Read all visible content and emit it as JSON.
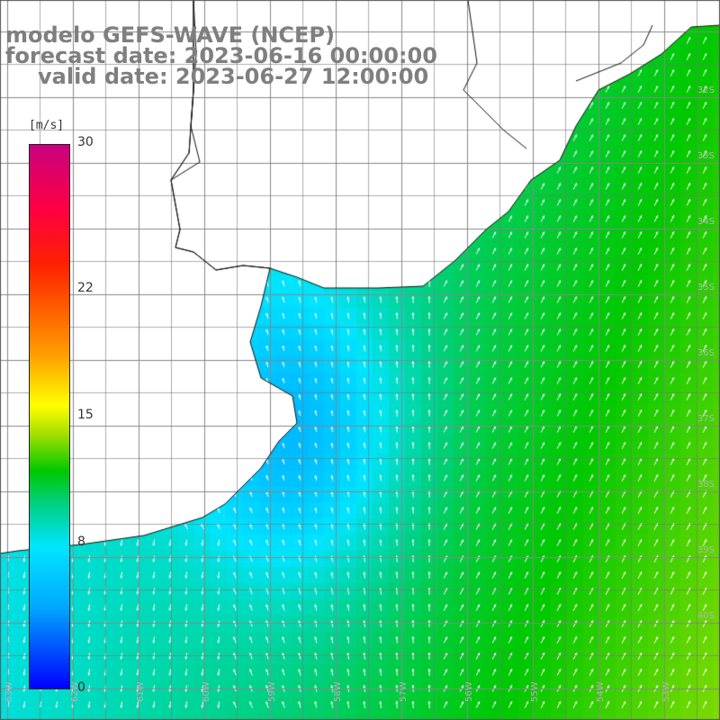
{
  "title": {
    "line1": "modelo GEFS-WAVE (NCEP)",
    "line2": "forecast date: 2023-06-16 00:00:00",
    "line3": "valid date: 2023-06-27 12:00:00"
  },
  "colorbar": {
    "unit": "[m/s]",
    "ticks": [
      {
        "label": "30",
        "value": 30
      },
      {
        "label": "22",
        "value": 22
      },
      {
        "label": "15",
        "value": 15
      },
      {
        "label": "8",
        "value": 8
      },
      {
        "label": "0",
        "value": 0
      }
    ],
    "range": [
      0,
      30
    ]
  },
  "axes": {
    "lat_labels": [
      "32S",
      "33S",
      "34S",
      "35S",
      "36S",
      "37S",
      "38S",
      "39S",
      "40S"
    ],
    "lon_labels": [
      "63W",
      "62W",
      "61W",
      "60W",
      "59W",
      "58W",
      "57W",
      "56W",
      "55W",
      "54W",
      "53W"
    ]
  },
  "colors": {
    "land": "#ffffff",
    "coast": "#111111",
    "grid": "#888888",
    "arrow": "#ffffff"
  }
}
